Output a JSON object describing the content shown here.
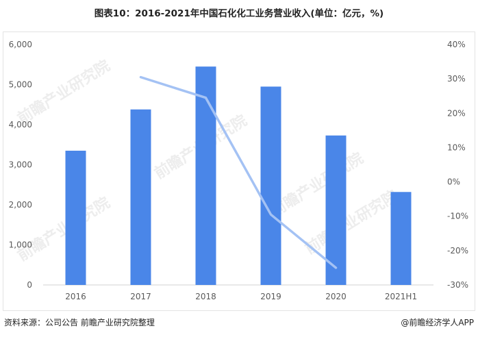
{
  "title": "图表10：2016-2021年中国石化化工业务营业收入(单位：亿元，%)",
  "footer": {
    "source": "资料来源：公司公告  前瞻产业研究院整理",
    "publisher": "@前瞻经济学人APP"
  },
  "watermark": "前瞻产业研究院",
  "colors": {
    "bar": "#4a86e8",
    "line": "#a4c2f4",
    "grid": "#e0e0e0",
    "axis_text": "#595959"
  },
  "chart_data": {
    "type": "bar",
    "categories": [
      "2016",
      "2017",
      "2018",
      "2019",
      "2020",
      "2021H1"
    ],
    "series": [
      {
        "type": "bar",
        "axis": "left",
        "values": [
          3350,
          4380,
          5450,
          4950,
          3730,
          2320
        ]
      },
      {
        "type": "line",
        "axis": "right",
        "values": [
          null,
          30.5,
          24.5,
          -9.5,
          -25,
          null
        ]
      }
    ],
    "ylim_left": [
      0,
      6000
    ],
    "yticks_left": [
      "0",
      "1,000",
      "2,000",
      "3,000",
      "4,000",
      "5,000",
      "6,000"
    ],
    "ylim_right": [
      -30,
      40
    ],
    "yticks_right": [
      "-30%",
      "-20%",
      "-10%",
      "0%",
      "10%",
      "20%",
      "30%",
      "40%"
    ],
    "grid": false
  }
}
